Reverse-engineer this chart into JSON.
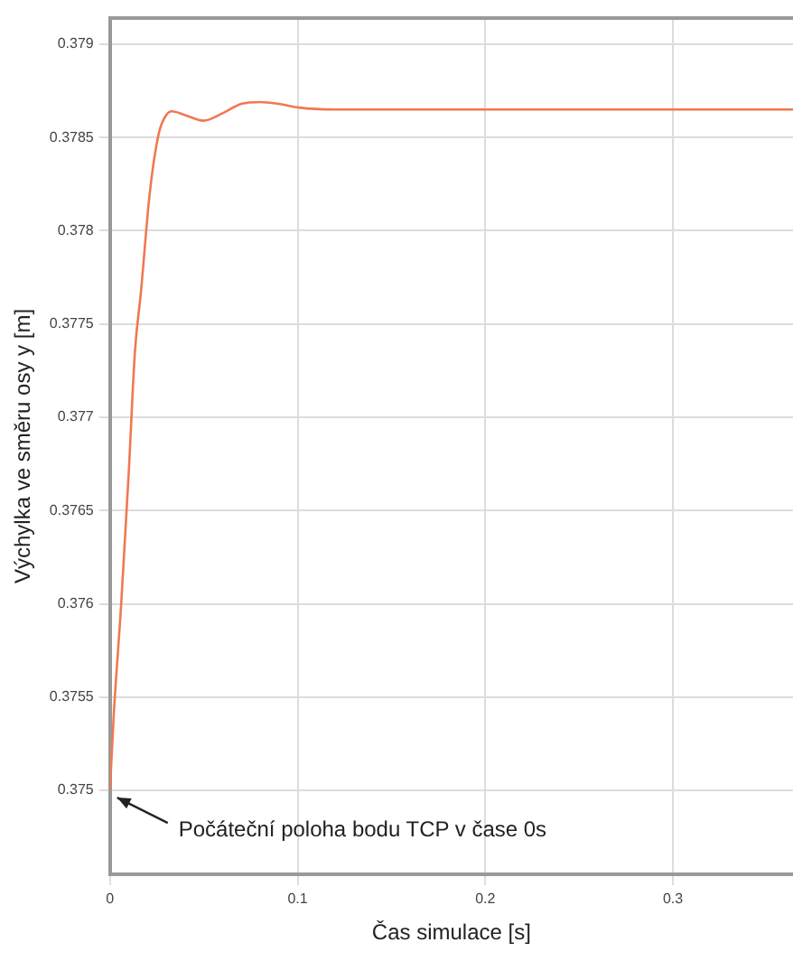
{
  "chart_data": {
    "type": "line",
    "xlabel": "Čas simulace [s]",
    "ylabel": "Výchylka ve směru osy y [m]",
    "series": [
      {
        "color": "#f07850",
        "x": [
          0,
          0.002,
          0.006,
          0.01,
          0.0133,
          0.0165,
          0.0212,
          0.026,
          0.03,
          0.033,
          0.04,
          0.0498,
          0.06,
          0.07,
          0.08,
          0.09,
          0.1007,
          0.12,
          0.14,
          0.2,
          0.3,
          0.364
        ],
        "values": [
          0.375,
          0.3754,
          0.376,
          0.3767,
          0.37735,
          0.37767,
          0.3782,
          0.37852,
          0.37862,
          0.37864,
          0.37862,
          0.37859,
          0.37863,
          0.37868,
          0.37869,
          0.37868,
          0.37866,
          0.37865,
          0.37865,
          0.37865,
          0.37865,
          0.37865
        ]
      }
    ],
    "xlim": [
      0,
      0.364
    ],
    "xticks": [
      0,
      0.1,
      0.2,
      0.3
    ],
    "ylim": [
      0.37455,
      0.37914
    ],
    "yticks": [
      0.375,
      0.3755,
      0.376,
      0.3765,
      0.377,
      0.3775,
      0.378,
      0.3785,
      0.379
    ],
    "grid": true,
    "legend": false,
    "marker": "none",
    "line_style": "solid",
    "annotations": [
      {
        "text": "Počáteční poloha bodu TCP v čase 0s",
        "x": 0,
        "y": 0.375
      }
    ]
  }
}
